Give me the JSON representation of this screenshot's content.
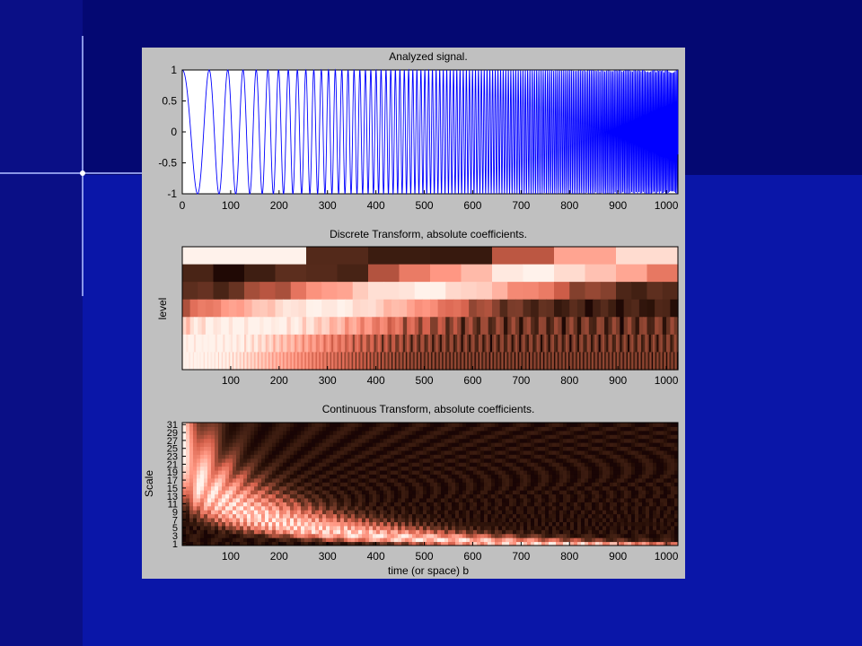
{
  "colors": {
    "slide_background": "#050a7a",
    "slide_left_band": "#050b80",
    "slide_right_band": "#0a16a8",
    "figure_background": "#c0c0c0",
    "signal_line": "#0000ff",
    "colormap": "pink"
  },
  "chart_data": [
    {
      "type": "line",
      "title": "Analyzed signal.",
      "xlabel": "",
      "ylabel": "",
      "xlim": [
        0,
        1024
      ],
      "ylim": [
        -1,
        1
      ],
      "xticks": [
        0,
        100,
        200,
        300,
        400,
        500,
        600,
        700,
        800,
        900,
        1000
      ],
      "yticks": [
        -1,
        -0.5,
        0,
        0.5,
        1
      ],
      "ytick_labels": [
        "-1",
        "-0.5",
        "0",
        "0.5",
        "1"
      ],
      "description_of_series": "chirp-like oscillation, amplitude 1, frequency increasing with time",
      "series": [
        {
          "x_start": 0,
          "x_end": 1024,
          "amplitude": 1.0,
          "start_period": 90,
          "end_period": 2.5
        }
      ]
    },
    {
      "type": "heatmap",
      "title": "Discrete Transform, absolute coefficients.",
      "xlabel": "",
      "ylabel": "level",
      "xlim": [
        0,
        1024
      ],
      "xticks": [
        100,
        200,
        300,
        400,
        500,
        600,
        700,
        800,
        900,
        1000
      ],
      "levels": 7,
      "colormap": "pink"
    },
    {
      "type": "heatmap",
      "title": "Continuous Transform, absolute coefficients.",
      "xlabel": "time (or space) b",
      "ylabel": "Scale",
      "xlim": [
        0,
        1024
      ],
      "xticks": [
        100,
        200,
        300,
        400,
        500,
        600,
        700,
        800,
        900,
        1000
      ],
      "yticks": [
        1,
        3,
        5,
        7,
        9,
        11,
        13,
        15,
        17,
        19,
        21,
        23,
        25,
        27,
        29,
        31
      ],
      "scales": 31,
      "colormap": "pink"
    }
  ]
}
